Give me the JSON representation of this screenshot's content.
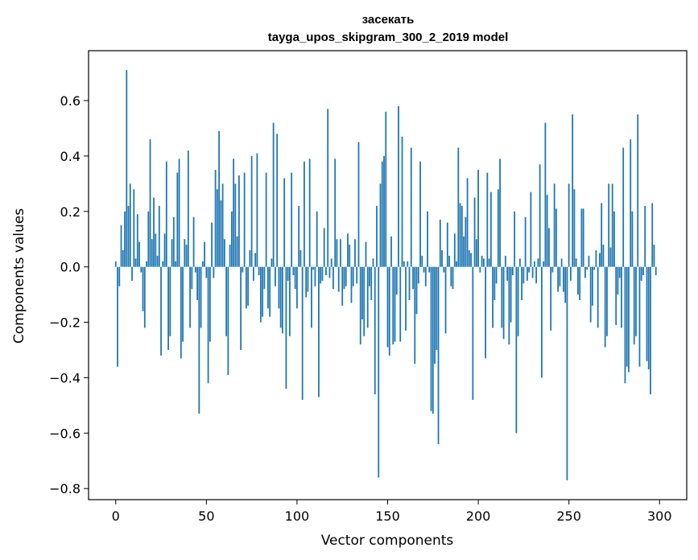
{
  "chart_data": {
    "type": "bar",
    "title_line1": "засекать",
    "title_line2": "tayga_upos_skipgram_300_2_2019 model",
    "xlabel": "Vector components",
    "ylabel": "Components values",
    "xlim": [
      -15,
      315
    ],
    "ylim": [
      -0.84,
      0.78
    ],
    "xticks": [
      0,
      50,
      100,
      150,
      200,
      250,
      300
    ],
    "xtick_labels": [
      "0",
      "50",
      "100",
      "150",
      "200",
      "250",
      "300"
    ],
    "yticks": [
      -0.8,
      -0.6,
      -0.4,
      -0.2,
      0.0,
      0.2,
      0.4,
      0.6
    ],
    "ytick_labels": [
      "−0.8",
      "−0.6",
      "−0.4",
      "−0.2",
      "0.0",
      "0.2",
      "0.4",
      "0.6"
    ],
    "bar_color": "#1f77b4",
    "grid": false,
    "values": [
      0.02,
      -0.36,
      -0.07,
      0.15,
      0.06,
      0.2,
      0.71,
      0.22,
      0.3,
      -0.05,
      0.28,
      0.03,
      0.19,
      0.09,
      -0.02,
      -0.16,
      -0.22,
      0.02,
      0.2,
      0.46,
      0.1,
      0.25,
      0.12,
      0.04,
      0.22,
      -0.32,
      0.02,
      0.12,
      0.38,
      -0.3,
      -0.25,
      0.1,
      0.18,
      0.02,
      0.34,
      0.39,
      -0.33,
      -0.27,
      0.1,
      0.08,
      0.42,
      -0.22,
      -0.08,
      0.18,
      -0.02,
      -0.12,
      -0.53,
      -0.22,
      0.02,
      0.09,
      -0.04,
      -0.42,
      -0.27,
      0.16,
      -0.04,
      0.35,
      0.28,
      0.49,
      0.24,
      0.3,
      0.1,
      -0.25,
      -0.39,
      0.08,
      0.2,
      0.39,
      0.3,
      0.11,
      0.33,
      -0.3,
      -0.02,
      0.34,
      -0.15,
      -0.14,
      0.06,
      0.4,
      -0.05,
      0.05,
      0.41,
      -0.03,
      -0.2,
      -0.18,
      -0.08,
      0.34,
      -0.15,
      -0.18,
      0.03,
      0.52,
      -0.07,
      0.48,
      -0.15,
      -0.22,
      -0.24,
      0.32,
      -0.44,
      -0.05,
      -0.25,
      0.34,
      -0.03,
      -0.08,
      -0.15,
      0.22,
      0.06,
      -0.48,
      0.38,
      -0.11,
      -0.09,
      0.39,
      -0.22,
      -0.01,
      -0.07,
      0.2,
      -0.47,
      -0.06,
      -0.05,
      0.14,
      -0.03,
      0.57,
      -0.04,
      0.03,
      -0.08,
      0.39,
      0.1,
      -0.09,
      0.1,
      -0.14,
      -0.08,
      -0.07,
      0.12,
      0.08,
      -0.13,
      -0.07,
      0.1,
      -0.06,
      0.45,
      -0.28,
      -0.19,
      -0.25,
      0.09,
      -0.22,
      -0.07,
      -0.12,
      0.03,
      -0.46,
      0.22,
      -0.76,
      0.3,
      0.38,
      0.4,
      0.56,
      -0.29,
      -0.32,
      0.11,
      -0.28,
      -0.27,
      -0.1,
      0.58,
      -0.27,
      0.47,
      0.02,
      -0.23,
      0.02,
      -0.12,
      0.43,
      -0.08,
      -0.35,
      -0.17,
      -0.06,
      0.38,
      0.04,
      -0.02,
      -0.07,
      0.2,
      -0.02,
      -0.52,
      -0.53,
      -0.35,
      -0.3,
      -0.64,
      0.17,
      0.06,
      -0.02,
      -0.24,
      0.16,
      0.04,
      -0.07,
      -0.08,
      0.12,
      0.02,
      0.43,
      0.23,
      0.22,
      0.11,
      0.18,
      0.32,
      0.06,
      0.05,
      -0.48,
      0.25,
      0.1,
      0.35,
      -0.02,
      0.04,
      0.03,
      -0.33,
      0.34,
      0.03,
      0.27,
      -0.22,
      -0.12,
      -0.06,
      0.28,
      0.39,
      -0.22,
      -0.26,
      0.04,
      -0.05,
      -0.28,
      -0.2,
      -0.03,
      0.2,
      -0.6,
      -0.25,
      0.03,
      -0.12,
      -0.06,
      0.18,
      -0.05,
      -0.02,
      0.27,
      -0.04,
      0.02,
      -0.06,
      0.03,
      0.37,
      -0.4,
      0.02,
      0.52,
      0.26,
      0.14,
      -0.23,
      -0.02,
      0.3,
      0.21,
      -0.09,
      -0.07,
      0.03,
      -0.09,
      -0.13,
      -0.77,
      0.3,
      -0.05,
      0.55,
      0.28,
      0.03,
      -0.1,
      -0.12,
      0.21,
      0.21,
      -0.04,
      -0.01,
      0.04,
      -0.2,
      -0.14,
      -0.01,
      0.06,
      -0.22,
      0.05,
      0.23,
      0.08,
      -0.29,
      -0.25,
      0.3,
      0.07,
      0.3,
      0.2,
      -0.21,
      -0.1,
      -0.04,
      -0.22,
      0.43,
      -0.42,
      -0.36,
      -0.38,
      0.46,
      0.2,
      -0.28,
      -0.25,
      0.55,
      -0.36,
      -0.05,
      -0.03,
      0.22,
      -0.34,
      -0.37,
      -0.46,
      0.23,
      0.08,
      -0.03
    ]
  }
}
